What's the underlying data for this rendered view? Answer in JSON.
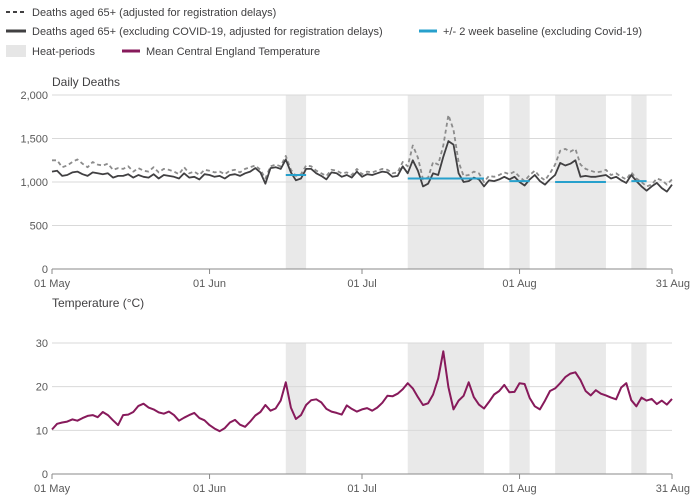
{
  "legend": {
    "deaths_adj": "Deaths aged 65+ (adjusted for registration delays)",
    "deaths_excl": "Deaths aged 65+ (excluding COVID-19, adjusted for registration delays)",
    "baseline": "+/- 2 week baseline (excluding Covid-19)",
    "heat": "Heat-periods",
    "temp": "Mean Central England Temperature"
  },
  "colors": {
    "deaths_adj": "#8c8c8c",
    "deaths_excl": "#414042",
    "baseline": "#27a0cc",
    "heat": "#e9e9e9",
    "temp": "#871a5b"
  },
  "chart_data": [
    {
      "type": "line",
      "title": "Daily Deaths",
      "x_ticks": [
        "01 May",
        "01 Jun",
        "01 Jul",
        "01 Aug",
        "31 Aug"
      ],
      "x_tick_days": [
        0,
        31,
        61,
        92,
        122
      ],
      "ylim": [
        0,
        2000
      ],
      "y_ticks": [
        0,
        500,
        1000,
        1500,
        2000
      ],
      "y_tick_labels": [
        "0",
        "500",
        "1,000",
        "1,500",
        "2,000"
      ],
      "heat_periods": [
        [
          46,
          50
        ],
        [
          70,
          85
        ],
        [
          90,
          94
        ],
        [
          99,
          109
        ],
        [
          114,
          117
        ]
      ],
      "series": [
        {
          "name": "Deaths aged 65+ (adjusted for registration delays)",
          "style": "dashed",
          "values": [
            1250,
            1250,
            1170,
            1190,
            1230,
            1260,
            1210,
            1170,
            1230,
            1200,
            1190,
            1210,
            1140,
            1160,
            1150,
            1180,
            1120,
            1160,
            1130,
            1120,
            1170,
            1110,
            1150,
            1140,
            1120,
            1090,
            1170,
            1100,
            1120,
            1080,
            1140,
            1130,
            1110,
            1120,
            1090,
            1130,
            1140,
            1110,
            1150,
            1170,
            1190,
            1140,
            1040,
            1180,
            1200,
            1180,
            1300,
            1140,
            1070,
            1090,
            1190,
            1180,
            1130,
            1100,
            1070,
            1140,
            1130,
            1100,
            1110,
            1080,
            1150,
            1090,
            1120,
            1110,
            1130,
            1150,
            1140,
            1100,
            1110,
            1230,
            1180,
            1420,
            1280,
            1030,
            1050,
            1230,
            1200,
            1420,
            1770,
            1600,
            1230,
            1070,
            1080,
            1120,
            1100,
            1000,
            1070,
            1060,
            1080,
            1110,
            1090,
            1120,
            1060,
            1010,
            1080,
            1130,
            1060,
            1020,
            1100,
            1200,
            1360,
            1380,
            1350,
            1380,
            1200,
            1150,
            1130,
            1110,
            1120,
            1140,
            1080,
            1100,
            1060,
            1030,
            1110,
            1040,
            1000,
            950,
            970,
            1040,
            1020,
            970,
            1030
          ]
        },
        {
          "name": "Deaths aged 65+ (excluding COVID-19, adjusted for registration delays)",
          "style": "solid",
          "values": [
            1120,
            1130,
            1070,
            1080,
            1110,
            1120,
            1090,
            1070,
            1110,
            1100,
            1090,
            1100,
            1050,
            1070,
            1070,
            1090,
            1050,
            1080,
            1060,
            1050,
            1090,
            1040,
            1080,
            1070,
            1060,
            1040,
            1100,
            1050,
            1060,
            1030,
            1090,
            1080,
            1060,
            1070,
            1040,
            1080,
            1090,
            1070,
            1100,
            1120,
            1160,
            1110,
            980,
            1160,
            1170,
            1150,
            1260,
            1110,
            1020,
            1040,
            1150,
            1150,
            1100,
            1070,
            1030,
            1110,
            1100,
            1060,
            1080,
            1050,
            1120,
            1060,
            1090,
            1080,
            1100,
            1120,
            1110,
            1060,
            1070,
            1180,
            1100,
            1250,
            1130,
            950,
            980,
            1100,
            1080,
            1290,
            1470,
            1430,
            1100,
            1000,
            1010,
            1050,
            1030,
            950,
            1020,
            1010,
            1030,
            1060,
            1030,
            1060,
            1000,
            960,
            1030,
            1080,
            1010,
            970,
            1030,
            1080,
            1220,
            1190,
            1210,
            1250,
            1060,
            1070,
            1060,
            1060,
            1070,
            1080,
            1040,
            1060,
            1020,
            990,
            1080,
            1010,
            950,
            900,
            950,
            990,
            930,
            890,
            970
          ]
        },
        {
          "name": "+/- 2 week baseline (excluding Covid-19)",
          "style": "segments",
          "segments": [
            {
              "from": 46,
              "to": 50,
              "value": 1080
            },
            {
              "from": 70,
              "to": 85,
              "value": 1040
            },
            {
              "from": 90,
              "to": 94,
              "value": 1010
            },
            {
              "from": 99,
              "to": 109,
              "value": 1000
            },
            {
              "from": 114,
              "to": 117,
              "value": 1010
            }
          ]
        }
      ]
    },
    {
      "type": "line",
      "title": "Temperature (°C)",
      "x_ticks": [
        "01 May",
        "01 Jun",
        "01 Jul",
        "01 Aug",
        "31 Aug"
      ],
      "x_tick_days": [
        0,
        31,
        61,
        92,
        122
      ],
      "ylim": [
        0,
        30
      ],
      "y_ticks": [
        0,
        10,
        20,
        30
      ],
      "y_tick_labels": [
        "0",
        "10",
        "20",
        "30"
      ],
      "heat_periods": [
        [
          46,
          50
        ],
        [
          70,
          85
        ],
        [
          90,
          94
        ],
        [
          99,
          109
        ],
        [
          114,
          117
        ]
      ],
      "series": [
        {
          "name": "Mean Central England Temperature",
          "values": [
            10.2,
            11.5,
            11.8,
            12.0,
            12.5,
            12.2,
            12.8,
            13.3,
            13.5,
            13.0,
            14.2,
            13.5,
            12.3,
            11.2,
            13.5,
            13.6,
            14.2,
            15.6,
            16.1,
            15.2,
            14.8,
            14.1,
            13.8,
            14.3,
            13.5,
            12.2,
            12.9,
            13.5,
            14.0,
            12.8,
            12.3,
            11.2,
            10.4,
            9.8,
            10.5,
            11.8,
            12.4,
            11.3,
            10.8,
            12.0,
            13.4,
            14.2,
            15.8,
            14.5,
            15.0,
            16.8,
            21.0,
            15.2,
            12.6,
            13.5,
            15.8,
            16.9,
            17.1,
            16.4,
            14.9,
            14.3,
            14.0,
            13.6,
            15.7,
            14.9,
            14.3,
            14.8,
            15.1,
            14.5,
            15.2,
            16.3,
            17.9,
            17.8,
            18.4,
            19.4,
            20.8,
            19.6,
            17.6,
            15.8,
            16.2,
            18.2,
            21.9,
            28.1,
            19.9,
            14.8,
            16.8,
            17.9,
            21.0,
            17.6,
            15.9,
            15.0,
            16.5,
            18.2,
            19.0,
            20.4,
            18.7,
            18.8,
            20.8,
            20.6,
            17.4,
            15.5,
            14.8,
            16.8,
            19.0,
            19.6,
            20.8,
            22.2,
            23.0,
            23.3,
            21.5,
            19.0,
            18.0,
            19.2,
            18.4,
            18.0,
            17.5,
            17.1,
            19.8,
            20.8,
            16.9,
            15.5,
            17.5,
            16.8,
            17.2,
            16.0,
            16.8,
            15.9,
            17.2
          ]
        }
      ]
    }
  ]
}
